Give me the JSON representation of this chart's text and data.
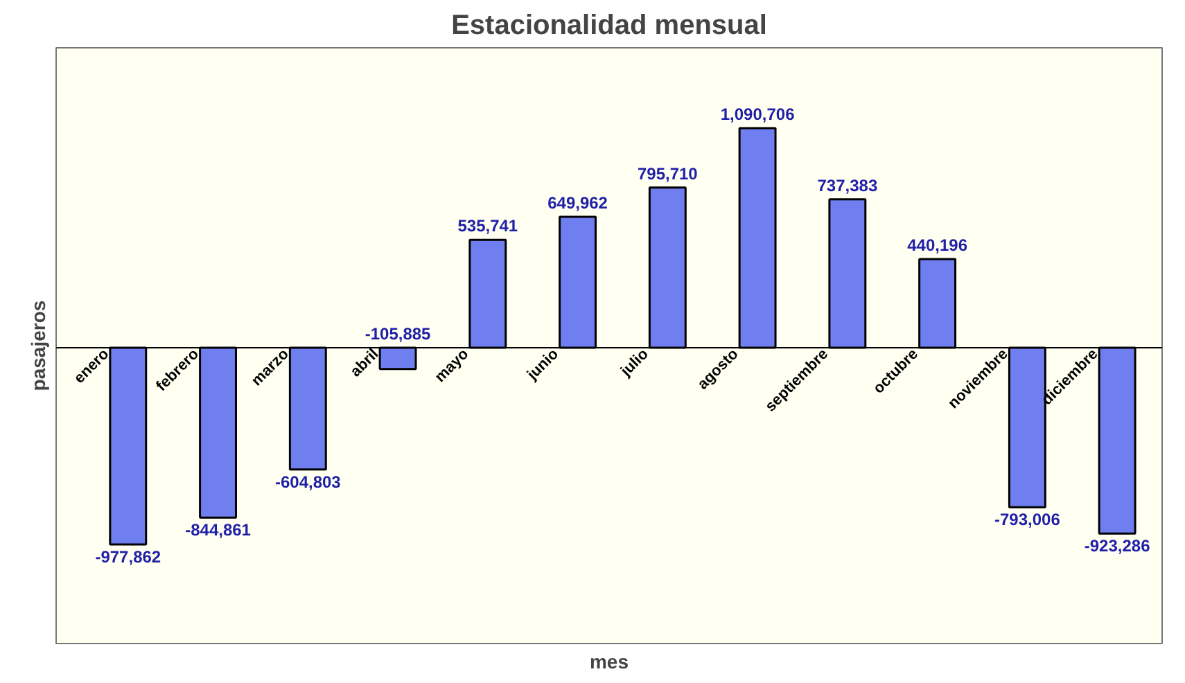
{
  "chart_data": {
    "type": "bar",
    "title": "Estacionalidad mensual",
    "xlabel": "mes",
    "ylabel": "pasajeros",
    "categories": [
      "enero",
      "febrero",
      "marzo",
      "abril",
      "mayo",
      "junio",
      "julio",
      "agosto",
      "septiembre",
      "octubre",
      "noviembre",
      "diciembre"
    ],
    "values": [
      -977862,
      -844861,
      -604803,
      -105885,
      535741,
      649962,
      795710,
      1090706,
      737383,
      440196,
      -793006,
      -923286
    ],
    "value_labels": [
      "-977,862",
      "-844,861",
      "-604,803",
      "-105,885",
      "535,741",
      "649,962",
      "795,710",
      "1,090,706",
      "737,383",
      "440,196",
      "-793,006",
      "-923,286"
    ],
    "color": "#6f7fef",
    "ylim": [
      -1470000,
      1490000
    ]
  }
}
